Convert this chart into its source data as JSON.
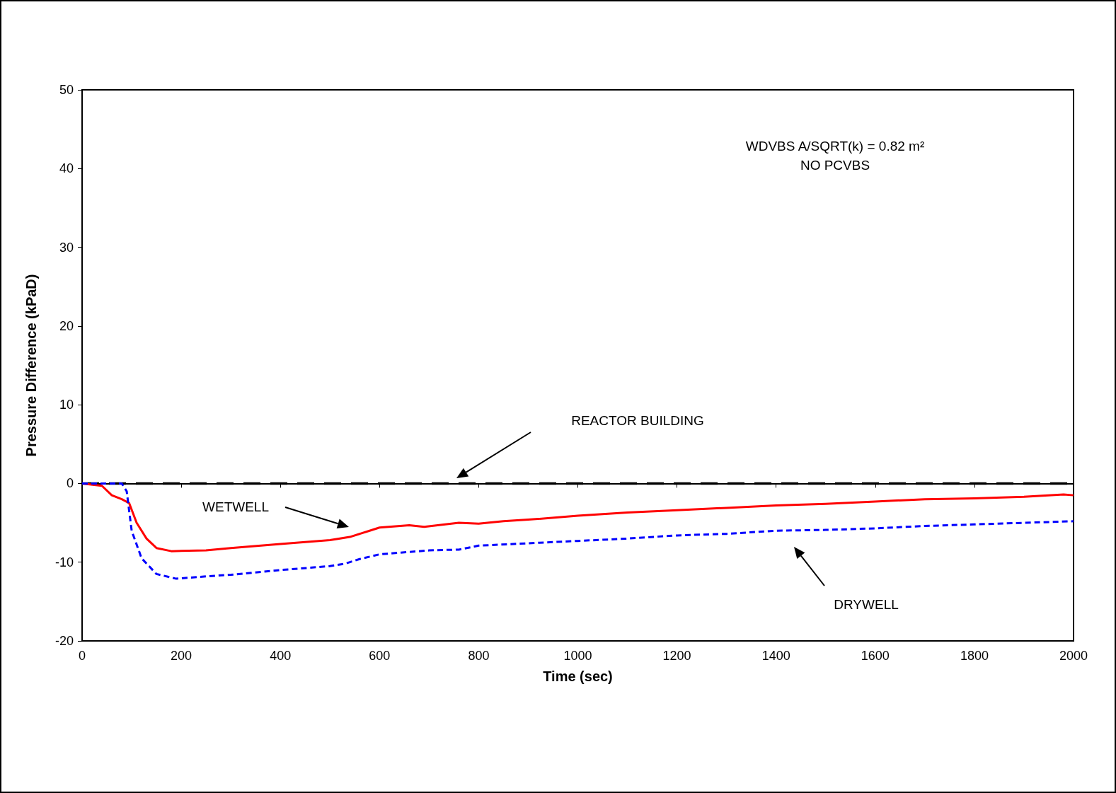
{
  "chart_data": {
    "type": "line",
    "xlabel": "Time (sec)",
    "ylabel": "Pressure Difference (kPaD)",
    "xlim": [
      0,
      2000
    ],
    "xticks": [
      0,
      200,
      400,
      600,
      800,
      1000,
      1200,
      1400,
      1600,
      1800,
      2000
    ],
    "ylim": [
      -20,
      50
    ],
    "yticks": [
      -20,
      -10,
      0,
      10,
      20,
      30,
      40,
      50
    ],
    "grid": false,
    "marker": "none",
    "series": [
      {
        "color": "#000000",
        "line_style": "dashed",
        "x": [
          0,
          2000
        ],
        "values": [
          0,
          0
        ]
      },
      {
        "color": "#ff0000",
        "line_style": "solid",
        "x": [
          0,
          40,
          60,
          80,
          95,
          110,
          130,
          150,
          180,
          250,
          300,
          400,
          500,
          540,
          580,
          600,
          660,
          690,
          760,
          800,
          850,
          900,
          1000,
          1100,
          1200,
          1300,
          1400,
          1500,
          1600,
          1700,
          1800,
          1900,
          1980,
          2000
        ],
        "values": [
          0,
          -0.3,
          -1.5,
          -2,
          -2.5,
          -5,
          -7,
          -8.2,
          -8.6,
          -8.5,
          -8.2,
          -7.7,
          -7.2,
          -6.8,
          -6,
          -5.6,
          -5.3,
          -5.5,
          -5,
          -5.1,
          -4.8,
          -4.6,
          -4.1,
          -3.7,
          -3.4,
          -3.1,
          -2.8,
          -2.6,
          -2.3,
          -2,
          -1.9,
          -1.7,
          -1.4,
          -1.5
        ]
      },
      {
        "color": "#0000ff",
        "line_style": "dotted",
        "x": [
          0,
          80,
          90,
          100,
          120,
          150,
          190,
          250,
          300,
          400,
          500,
          530,
          560,
          600,
          700,
          760,
          800,
          900,
          1000,
          1100,
          1200,
          1300,
          1400,
          1500,
          1600,
          1700,
          1800,
          1900,
          2000
        ],
        "values": [
          0,
          0,
          -1,
          -6,
          -9.5,
          -11.5,
          -12.1,
          -11.8,
          -11.6,
          -11,
          -10.5,
          -10.2,
          -9.6,
          -9,
          -8.5,
          -8.4,
          -7.9,
          -7.6,
          -7.3,
          -7,
          -6.6,
          -6.4,
          -6,
          -5.9,
          -5.7,
          -5.4,
          -5.2,
          -5,
          -4.8
        ]
      }
    ],
    "annotations": [
      "WDVBS A/SQRT(k) = 0.82 m²",
      "NO PCVBS",
      "REACTOR BUILDING",
      "WETWELL",
      "DRYWELL"
    ]
  }
}
